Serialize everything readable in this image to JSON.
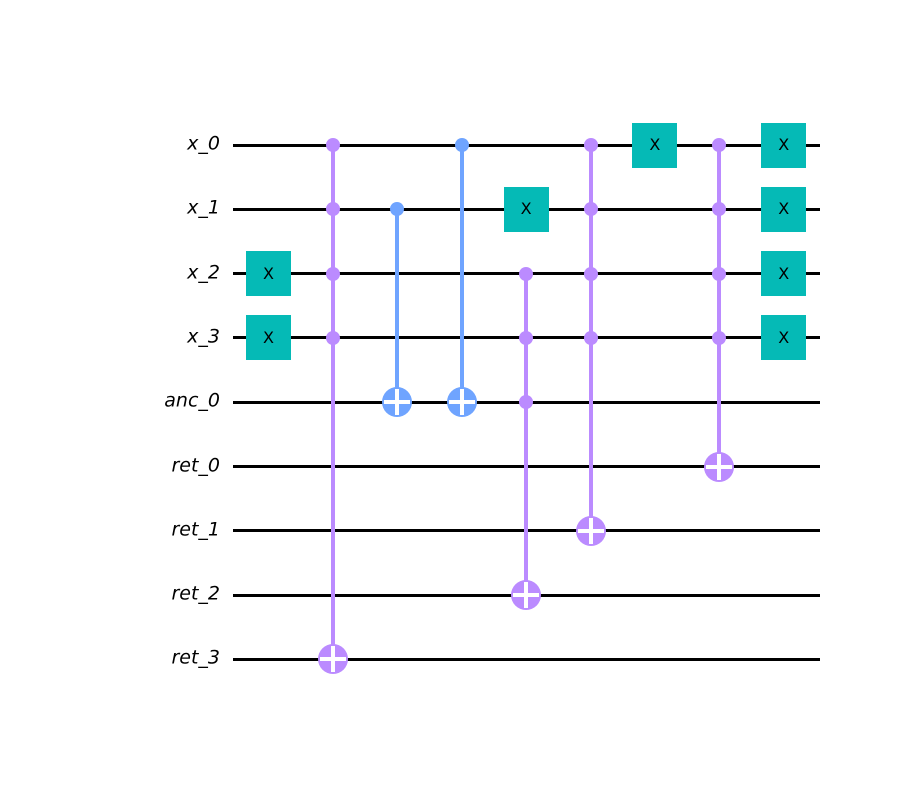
{
  "figure": {
    "type": "quantum-circuit",
    "background": "#ffffff"
  },
  "colors": {
    "wire": "#000000",
    "wire_label_color": "#000000",
    "x_gate_fill": "#05BAB6",
    "cx_fill": "#6FA4FF",
    "mcx_fill": "#BB8BFF",
    "gate_label_color": "#000000",
    "target_cross": "#ffffff"
  },
  "circuit": {
    "wire_labels": [
      "x_0",
      "x_1",
      "x_2",
      "x_3",
      "anc_0",
      "ret_0",
      "ret_1",
      "ret_2",
      "ret_3"
    ],
    "column_count": 9,
    "x_gate_label": "X",
    "gates": [
      {
        "kind": "x",
        "label": "X",
        "col": 0,
        "wire": 2
      },
      {
        "kind": "x",
        "label": "X",
        "col": 0,
        "wire": 3
      },
      {
        "kind": "mcx",
        "col": 1,
        "controls": [
          0,
          1,
          2,
          3
        ],
        "target": 8
      },
      {
        "kind": "cx",
        "col": 2,
        "controls": [
          1
        ],
        "target": 4
      },
      {
        "kind": "cx",
        "col": 3,
        "controls": [
          0
        ],
        "target": 4
      },
      {
        "kind": "x",
        "label": "X",
        "col": 4,
        "wire": 1
      },
      {
        "kind": "mcx",
        "col": 4,
        "controls": [
          2,
          3,
          4
        ],
        "target": 7
      },
      {
        "kind": "mcx",
        "col": 5,
        "controls": [
          0,
          1,
          2,
          3
        ],
        "target": 6
      },
      {
        "kind": "x",
        "label": "X",
        "col": 6,
        "wire": 0
      },
      {
        "kind": "mcx",
        "col": 7,
        "controls": [
          0,
          1,
          2,
          3
        ],
        "target": 5
      },
      {
        "kind": "x",
        "label": "X",
        "col": 8,
        "wire": 0
      },
      {
        "kind": "x",
        "label": "X",
        "col": 8,
        "wire": 1
      },
      {
        "kind": "x",
        "label": "X",
        "col": 8,
        "wire": 2
      },
      {
        "kind": "x",
        "label": "X",
        "col": 8,
        "wire": 3
      }
    ]
  }
}
